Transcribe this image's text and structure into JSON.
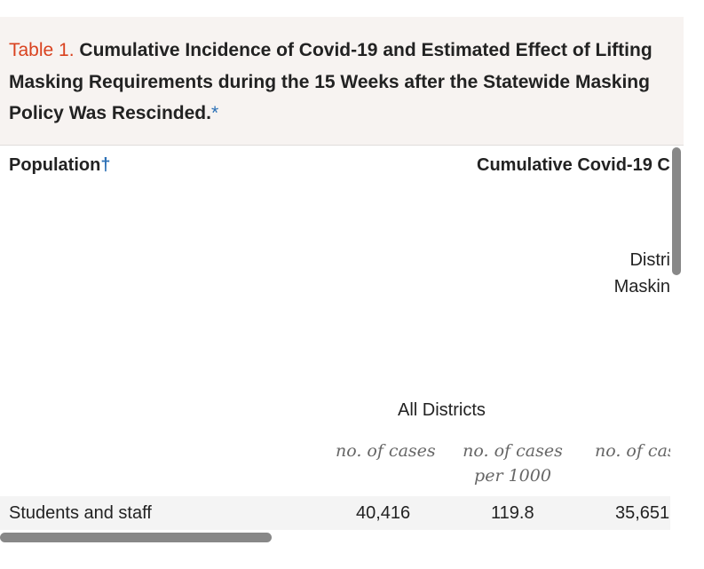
{
  "caption": {
    "label": "Table 1.",
    "title_line1": "Cumulative Incidence of Covid-19 and Estimated Effect of Lifting",
    "title_line2": "Masking Requirements during the 15 Weeks after the Statewide Masking",
    "title_line3": "Policy Was Rescinded.",
    "footnote_marker": "*"
  },
  "headers": {
    "population": "Population",
    "population_marker": "†",
    "cumulative": "Cumulative Covid-19 C",
    "districts_line1": "Distri",
    "districts_line2": "Maskin",
    "all_districts": "All Districts"
  },
  "units": {
    "col1": "no. of cases",
    "col2": "no. of cases per 1000",
    "col3": "no. of cas"
  },
  "rows": [
    {
      "population": "Students and staff",
      "cases": "40,416",
      "per_1000": "119.8",
      "cases_partial": "35,651"
    }
  ]
}
